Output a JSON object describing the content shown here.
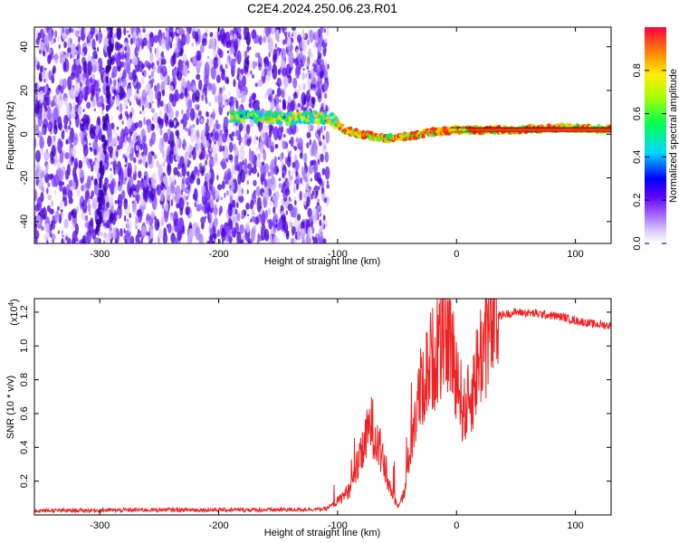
{
  "title": "C2E4.2024.250.06.23.R01",
  "colors": {
    "snr_line": "#ee2222",
    "scatter": "#6600ee",
    "frame": "#000000"
  },
  "chart_data": [
    {
      "type": "heatmap",
      "xlabel": "Height of straight line (km)",
      "ylabel": "Frequency (Hz)",
      "xlim": [
        -355,
        130
      ],
      "ylim": [
        -50,
        49
      ],
      "xticks": [
        -300,
        -200,
        -100,
        0,
        100
      ],
      "yticks": [
        -40,
        -20,
        0,
        20,
        40
      ],
      "colormap": "rainbow (white-violet-blue-cyan-green-yellow-orange-red)",
      "colorbar": {
        "label": "Normalized spectral amplitude",
        "range": [
          0,
          1
        ],
        "ticks": [
          0.0,
          0.2,
          0.4,
          0.6,
          0.8
        ]
      },
      "ridge": {
        "description": "dominant frequency band vs height",
        "points": [
          [
            -185,
            8
          ],
          [
            -160,
            8
          ],
          [
            -140,
            7
          ],
          [
            -120,
            8
          ],
          [
            -105,
            7
          ],
          [
            -95,
            2
          ],
          [
            -80,
            0
          ],
          [
            -60,
            -2
          ],
          [
            -40,
            -1
          ],
          [
            -20,
            1
          ],
          [
            0,
            2
          ],
          [
            50,
            2
          ],
          [
            90,
            3
          ],
          [
            130,
            2
          ]
        ]
      }
    },
    {
      "type": "line",
      "xlabel": "Height of straight line (km)",
      "ylabel": "SNR (10 * v/v)",
      "yscale_label": "(x10",
      "yscale_exp": "4",
      "xlim": [
        -355,
        130
      ],
      "ylim": [
        0,
        12800
      ],
      "xticks": [
        -300,
        -200,
        -100,
        0,
        100
      ],
      "yticks": [
        2000,
        4000,
        6000,
        8000,
        10000,
        12000
      ],
      "ytick_labels": [
        "0.2",
        "0.4",
        "0.6",
        "0.8",
        "1.0",
        "1.2"
      ],
      "series": [
        {
          "points": [
            [
              -355,
              250
            ],
            [
              -250,
              300
            ],
            [
              -150,
              300
            ],
            [
              -110,
              350
            ],
            [
              -100,
              800
            ],
            [
              -90,
              1500
            ],
            [
              -80,
              3500
            ],
            [
              -72,
              5500
            ],
            [
              -65,
              4000
            ],
            [
              -58,
              2000
            ],
            [
              -50,
              600
            ],
            [
              -44,
              1200
            ],
            [
              -38,
              4500
            ],
            [
              -30,
              7500
            ],
            [
              -22,
              9000
            ],
            [
              -14,
              10000
            ],
            [
              -8,
              11000
            ],
            [
              0,
              8500
            ],
            [
              6,
              6000
            ],
            [
              12,
              7000
            ],
            [
              20,
              9500
            ],
            [
              28,
              11000
            ],
            [
              36,
              11800
            ],
            [
              50,
              12000
            ],
            [
              70,
              11900
            ],
            [
              90,
              11700
            ],
            [
              100,
              11500
            ],
            [
              115,
              11300
            ],
            [
              130,
              11200
            ]
          ]
        }
      ]
    }
  ]
}
